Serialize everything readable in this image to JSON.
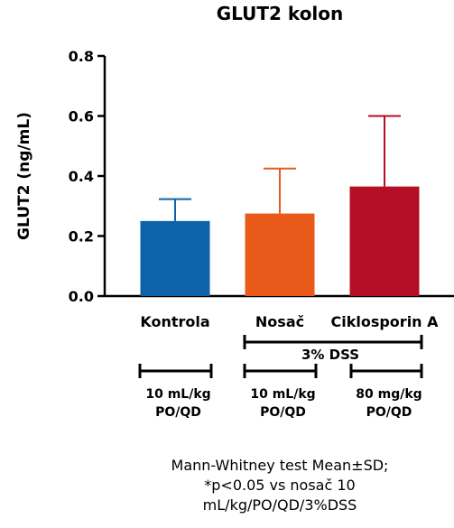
{
  "chart_data": {
    "type": "bar",
    "title": "GLUT2 kolon",
    "ylabel": "GLUT2 (ng/mL)",
    "xlabel": "",
    "ylim": [
      0,
      0.8
    ],
    "yticks": [
      "0.0",
      "0.2",
      "0.4",
      "0.6",
      "0.8"
    ],
    "grid": false,
    "categories": [
      "Kontrola",
      "Nosač",
      "Ciklosporin A"
    ],
    "values": [
      0.25,
      0.275,
      0.365
    ],
    "errors_sd": [
      0.073,
      0.15,
      0.235
    ],
    "colors": [
      "#0e62aa",
      "#e8591a",
      "#b40f25"
    ]
  },
  "annotations": {
    "dss_label": "3% DSS",
    "doses": [
      {
        "line1": "10 mL/kg",
        "line2": "PO/QD"
      },
      {
        "line1": "10 mL/kg",
        "line2": "PO/QD"
      },
      {
        "line1": "80 mg/kg",
        "line2": "PO/QD"
      }
    ]
  },
  "footnote": {
    "line1": "Mann-Whitney test Mean±SD;",
    "line2": "*p<0.05 vs nosač 10",
    "line3": "mL/kg/PO/QD/3%DSS"
  }
}
